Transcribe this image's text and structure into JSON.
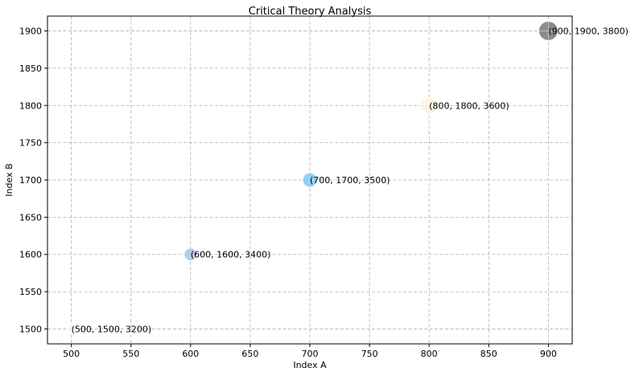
{
  "chart_data": {
    "type": "scatter",
    "title": "Critical Theory Analysis",
    "xlabel": "Index A",
    "ylabel": "Index B",
    "xlim": [
      480,
      920
    ],
    "ylim": [
      1480,
      1920
    ],
    "x_ticks": [
      500,
      550,
      600,
      650,
      700,
      750,
      800,
      850,
      900
    ],
    "y_ticks": [
      1500,
      1550,
      1600,
      1650,
      1700,
      1750,
      1800,
      1850,
      1900
    ],
    "grid": true,
    "points": [
      {
        "x": 500,
        "y": 1500,
        "size": 3200,
        "color": "#f8f8ff",
        "label": "(500, 1500, 3200)"
      },
      {
        "x": 600,
        "y": 1600,
        "size": 3400,
        "color": "#aec7e8",
        "label": "(600, 1600, 3400)"
      },
      {
        "x": 700,
        "y": 1700,
        "size": 3500,
        "color": "#87cefa",
        "label": "(700, 1700, 3500)"
      },
      {
        "x": 800,
        "y": 1800,
        "size": 3600,
        "color": "#fdf5e0",
        "label": "(800, 1800, 3600)"
      },
      {
        "x": 900,
        "y": 1900,
        "size": 3800,
        "color": "#808080",
        "label": "(900, 1900, 3800)"
      }
    ]
  }
}
